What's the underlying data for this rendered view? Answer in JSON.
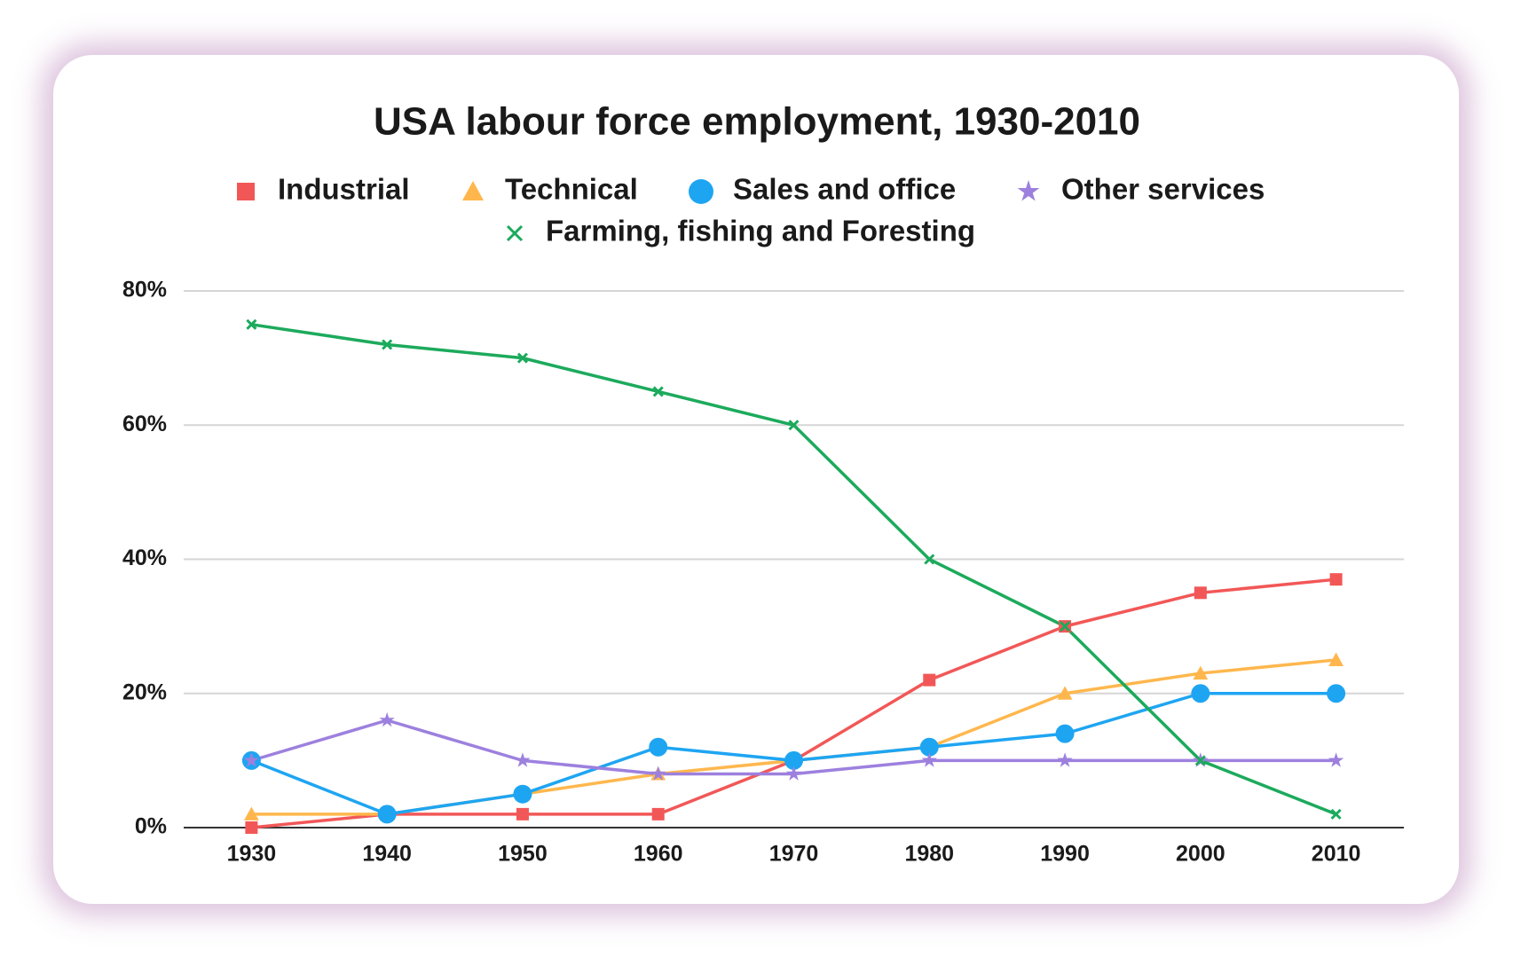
{
  "chart_data": {
    "type": "line",
    "title": "USA labour force employment, 1930-2010",
    "categories": [
      "1930",
      "1940",
      "1950",
      "1960",
      "1970",
      "1980",
      "1990",
      "2000",
      "2010"
    ],
    "series": [
      {
        "name": "Industrial",
        "color": "#f25757",
        "marker": "square",
        "values": [
          0,
          2,
          2,
          2,
          10,
          22,
          30,
          35,
          37
        ]
      },
      {
        "name": "Technical",
        "color": "#ffb74d",
        "marker": "triangle",
        "values": [
          2,
          2,
          5,
          8,
          10,
          12,
          20,
          23,
          25
        ]
      },
      {
        "name": "Sales and office",
        "color": "#1ea5f2",
        "marker": "circle",
        "values": [
          10,
          2,
          5,
          12,
          10,
          12,
          14,
          20,
          20
        ]
      },
      {
        "name": "Other services",
        "color": "#9d80de",
        "marker": "star",
        "values": [
          10,
          16,
          10,
          8,
          8,
          10,
          10,
          10,
          10
        ]
      },
      {
        "name": "Farming, fishing and Foresting",
        "color": "#1caa5c",
        "marker": "x",
        "values": [
          75,
          72,
          70,
          65,
          60,
          40,
          30,
          10,
          2
        ]
      }
    ],
    "ylim": [
      0,
      80
    ],
    "yticks": [
      {
        "value": 0,
        "label": "0%"
      },
      {
        "value": 20,
        "label": "20%"
      },
      {
        "value": 40,
        "label": "40%"
      },
      {
        "value": 60,
        "label": "60%"
      },
      {
        "value": 80,
        "label": "80%"
      }
    ],
    "grid": true,
    "legend": "top"
  }
}
